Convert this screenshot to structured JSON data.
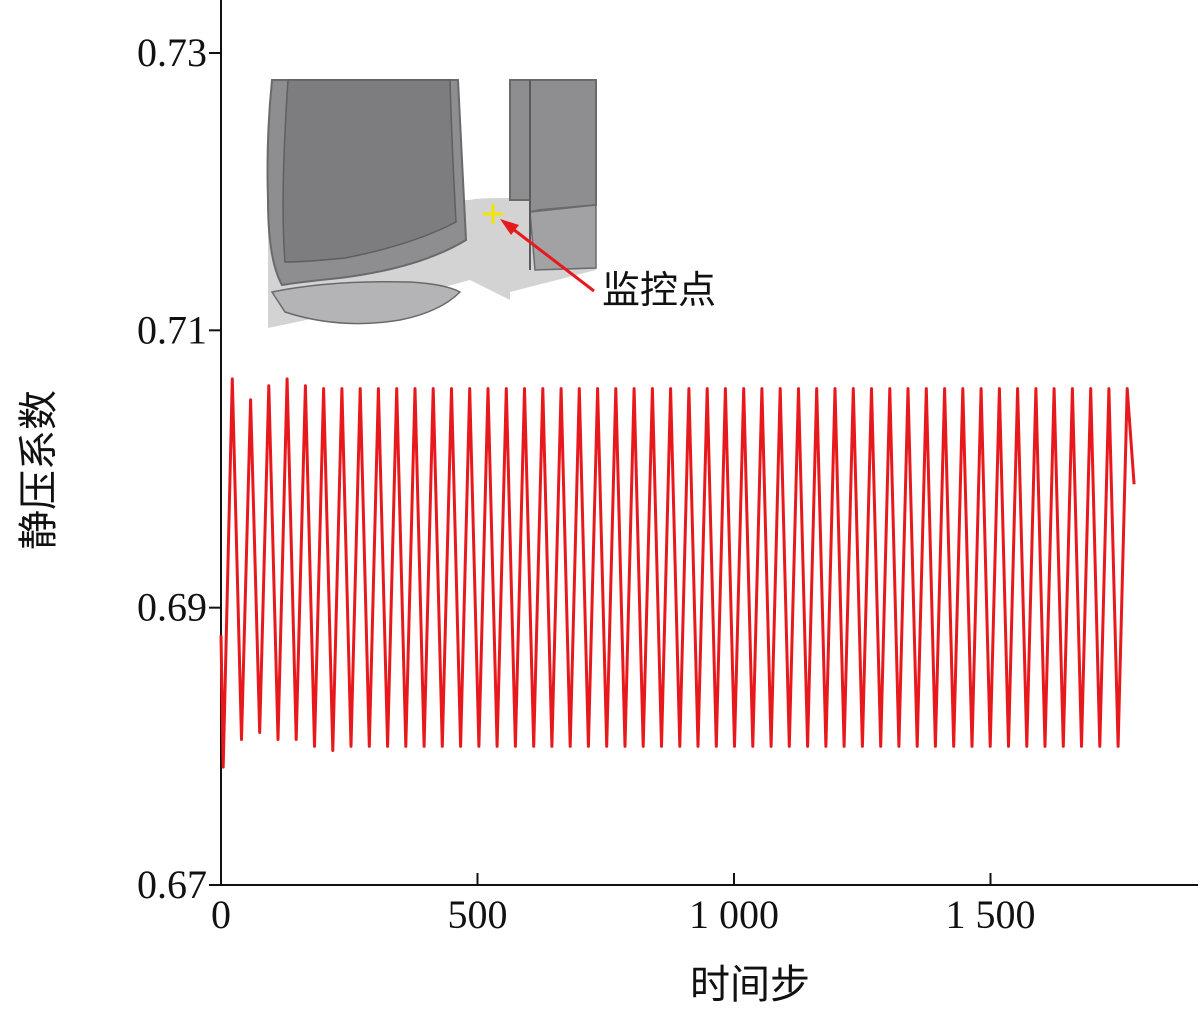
{
  "chart_data": {
    "type": "line",
    "title": "",
    "xlabel": "时间步",
    "ylabel": "静压系数",
    "xlim": [
      0,
      1900
    ],
    "ylim": [
      0.67,
      0.735
    ],
    "xticks": [
      0,
      500,
      1000,
      1500
    ],
    "xtick_labels": [
      "0",
      "500",
      "1 000",
      "1 500"
    ],
    "yticks": [
      0.67,
      0.69,
      0.71,
      0.73
    ],
    "ytick_labels": [
      "0.67",
      "0.69",
      "0.71",
      "0.73"
    ],
    "grid": false,
    "legend": "none",
    "series": [
      {
        "color": "#e8191c",
        "x_start": 0,
        "x_end": 1780,
        "period": 35.6,
        "initial": 0.688,
        "transient": [
          {
            "cycle": 0,
            "max": 0.7065,
            "min": 0.6785
          },
          {
            "cycle": 1,
            "max": 0.705,
            "min": 0.6805
          },
          {
            "cycle": 2,
            "max": 0.706,
            "min": 0.681
          },
          {
            "cycle": 3,
            "max": 0.7065,
            "min": 0.6805
          },
          {
            "cycle": 4,
            "max": 0.706,
            "min": 0.6805
          },
          {
            "cycle": 5,
            "max": 0.7058,
            "min": 0.68
          },
          {
            "cycle": 6,
            "max": 0.7058,
            "min": 0.6797
          }
        ],
        "steady_max": 0.7058,
        "steady_min": 0.68
      }
    ],
    "annotations": [
      {
        "text": "监控点",
        "points_to": "monitor-point",
        "color": "#e8191c",
        "marker_color": "#f2e600"
      }
    ]
  }
}
